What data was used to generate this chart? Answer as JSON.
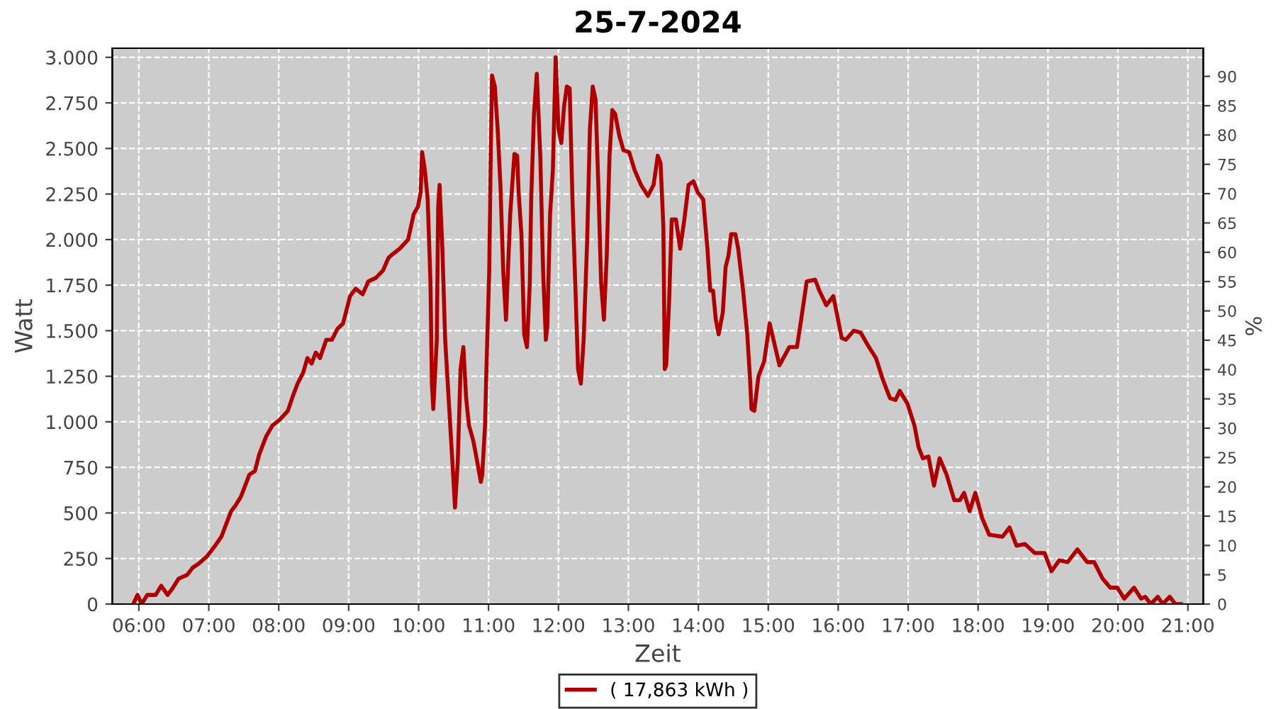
{
  "chart_data": {
    "type": "line",
    "title": "25-7-2024",
    "xlabel": "Zeit",
    "ylabel": "Watt",
    "y2label": "%",
    "xlim": [
      5.62,
      21.22
    ],
    "ylim": [
      0,
      3050
    ],
    "y2lim": [
      0,
      94.8
    ],
    "xticks": [
      {
        "value": 6,
        "label": "06:00"
      },
      {
        "value": 7,
        "label": "07:00"
      },
      {
        "value": 8,
        "label": "08:00"
      },
      {
        "value": 9,
        "label": "09:00"
      },
      {
        "value": 10,
        "label": "10:00"
      },
      {
        "value": 11,
        "label": "11:00"
      },
      {
        "value": 12,
        "label": "12:00"
      },
      {
        "value": 13,
        "label": "13:00"
      },
      {
        "value": 14,
        "label": "14:00"
      },
      {
        "value": 15,
        "label": "15:00"
      },
      {
        "value": 16,
        "label": "16:00"
      },
      {
        "value": 17,
        "label": "17:00"
      },
      {
        "value": 18,
        "label": "18:00"
      },
      {
        "value": 19,
        "label": "19:00"
      },
      {
        "value": 20,
        "label": "20:00"
      },
      {
        "value": 21,
        "label": "21:00"
      }
    ],
    "yticks": [
      0,
      250,
      500,
      750,
      {
        "value": 1000,
        "label": "1.000"
      },
      {
        "value": 1250,
        "label": "1.250"
      },
      {
        "value": 1500,
        "label": "1.500"
      },
      {
        "value": 1750,
        "label": "1.750"
      },
      {
        "value": 2000,
        "label": "2.000"
      },
      {
        "value": 2250,
        "label": "2.250"
      },
      {
        "value": 2500,
        "label": "2.500"
      },
      {
        "value": 2750,
        "label": "2.750"
      },
      {
        "value": 3000,
        "label": "3.000"
      }
    ],
    "y2ticks": [
      0,
      5,
      10,
      15,
      20,
      25,
      30,
      35,
      40,
      45,
      50,
      55,
      60,
      65,
      70,
      75,
      80,
      85,
      90
    ],
    "grid": true,
    "legend": "bottom",
    "line_style": "solid",
    "series": [
      {
        "name": "( 17,863 kWh )",
        "color": "#b00000",
        "x": [
          5.92,
          5.98,
          6.04,
          6.12,
          6.24,
          6.32,
          6.41,
          6.47,
          6.57,
          6.69,
          6.77,
          6.85,
          6.97,
          7.09,
          7.18,
          7.26,
          7.32,
          7.38,
          7.46,
          7.52,
          7.58,
          7.66,
          7.72,
          7.82,
          7.91,
          8.01,
          8.13,
          8.21,
          8.27,
          8.35,
          8.41,
          8.47,
          8.53,
          8.59,
          8.68,
          8.76,
          8.84,
          8.92,
          9.02,
          9.1,
          9.2,
          9.28,
          9.39,
          9.49,
          9.57,
          9.63,
          9.73,
          9.85,
          9.93,
          9.99,
          10.03,
          10.05,
          10.09,
          10.13,
          10.17,
          10.19,
          10.21,
          10.26,
          10.28,
          10.3,
          10.34,
          10.38,
          10.44,
          10.5,
          10.52,
          10.56,
          10.6,
          10.64,
          10.68,
          10.72,
          10.78,
          10.82,
          10.89,
          10.91,
          10.95,
          10.97,
          11.01,
          11.03,
          11.05,
          11.09,
          11.13,
          11.17,
          11.21,
          11.25,
          11.31,
          11.37,
          11.41,
          11.43,
          11.47,
          11.51,
          11.55,
          11.59,
          11.61,
          11.65,
          11.69,
          11.74,
          11.78,
          11.82,
          11.84,
          11.88,
          11.92,
          11.96,
          12.0,
          12.04,
          12.08,
          12.12,
          12.16,
          12.2,
          12.24,
          12.28,
          12.32,
          12.36,
          12.41,
          12.45,
          12.49,
          12.53,
          12.57,
          12.61,
          12.65,
          12.69,
          12.73,
          12.77,
          12.81,
          12.87,
          12.93,
          13.01,
          13.09,
          13.18,
          13.28,
          13.36,
          13.42,
          13.46,
          13.5,
          13.52,
          13.54,
          13.58,
          13.62,
          13.68,
          13.74,
          13.8,
          13.86,
          13.93,
          13.99,
          14.07,
          14.13,
          14.17,
          14.21,
          14.25,
          14.29,
          14.35,
          14.39,
          14.43,
          14.47,
          14.53,
          14.57,
          14.64,
          14.7,
          14.74,
          14.76,
          14.8,
          14.86,
          14.94,
          15.02,
          15.16,
          15.3,
          15.41,
          15.47,
          15.55,
          15.67,
          15.73,
          15.83,
          15.93,
          16.05,
          16.11,
          16.22,
          16.32,
          16.44,
          16.54,
          16.64,
          16.74,
          16.82,
          16.88,
          16.99,
          17.09,
          17.15,
          17.21,
          17.29,
          17.37,
          17.45,
          17.55,
          17.66,
          17.74,
          17.8,
          17.88,
          17.96,
          18.06,
          18.16,
          18.35,
          18.45,
          18.55,
          18.67,
          18.81,
          18.95,
          19.05,
          19.16,
          19.28,
          19.42,
          19.56,
          19.66,
          19.78,
          19.89,
          19.99,
          20.09,
          20.23,
          20.33,
          20.39,
          20.47,
          20.57,
          20.64,
          20.74,
          20.82,
          20.9
        ],
        "values": [
          0,
          50,
          0,
          50,
          50,
          100,
          50,
          80,
          140,
          160,
          200,
          220,
          260,
          320,
          370,
          450,
          510,
          540,
          590,
          650,
          710,
          730,
          820,
          920,
          980,
          1010,
          1060,
          1150,
          1210,
          1270,
          1350,
          1320,
          1380,
          1350,
          1450,
          1450,
          1510,
          1540,
          1690,
          1730,
          1700,
          1770,
          1790,
          1830,
          1900,
          1920,
          1950,
          2000,
          2140,
          2180,
          2260,
          2480,
          2380,
          2220,
          1760,
          1210,
          1070,
          1450,
          2180,
          2300,
          1950,
          1450,
          1060,
          670,
          530,
          780,
          1290,
          1410,
          1130,
          980,
          900,
          820,
          670,
          710,
          980,
          1290,
          1830,
          2420,
          2900,
          2840,
          2610,
          2300,
          1830,
          1560,
          2140,
          2470,
          2460,
          2260,
          2030,
          1480,
          1410,
          1760,
          2220,
          2690,
          2910,
          2460,
          1830,
          1450,
          1520,
          2140,
          2380,
          3000,
          2610,
          2530,
          2730,
          2840,
          2830,
          2220,
          1760,
          1290,
          1210,
          1450,
          1990,
          2610,
          2840,
          2770,
          2300,
          1760,
          1560,
          1910,
          2460,
          2710,
          2690,
          2570,
          2490,
          2480,
          2380,
          2300,
          2240,
          2300,
          2460,
          2420,
          2070,
          1290,
          1310,
          1640,
          2110,
          2110,
          1950,
          2110,
          2300,
          2320,
          2260,
          2220,
          1950,
          1720,
          1720,
          1560,
          1480,
          1600,
          1850,
          1910,
          2030,
          2030,
          1950,
          1720,
          1480,
          1230,
          1070,
          1060,
          1250,
          1330,
          1540,
          1310,
          1410,
          1410,
          1560,
          1770,
          1780,
          1720,
          1640,
          1690,
          1460,
          1450,
          1500,
          1490,
          1410,
          1350,
          1230,
          1130,
          1120,
          1170,
          1100,
          980,
          860,
          800,
          810,
          650,
          800,
          710,
          570,
          570,
          610,
          510,
          610,
          470,
          380,
          370,
          420,
          320,
          330,
          280,
          280,
          180,
          240,
          230,
          300,
          230,
          230,
          140,
          90,
          90,
          30,
          90,
          30,
          40,
          0,
          40,
          0,
          40,
          0,
          0
        ]
      }
    ]
  }
}
